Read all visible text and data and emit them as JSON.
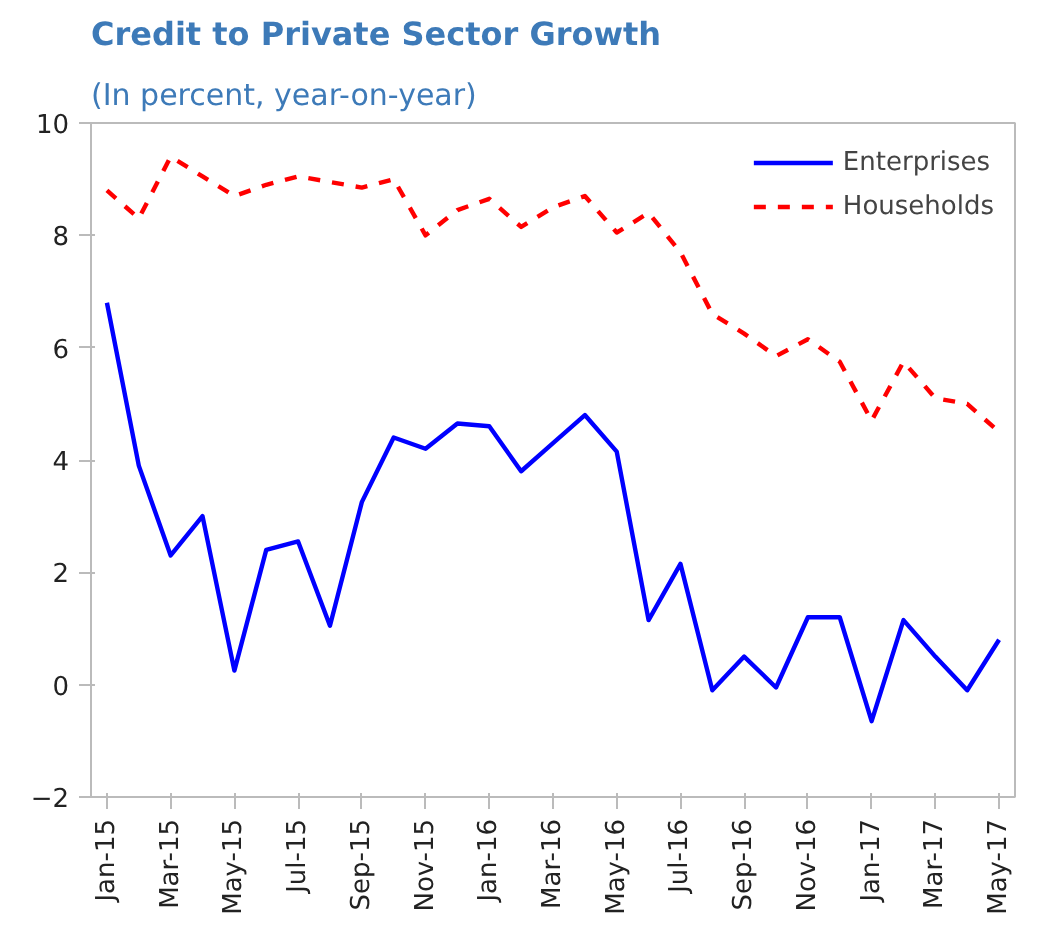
{
  "chart_data": {
    "type": "line",
    "title": "Credit to Private Sector Growth",
    "subtitle": "(In percent, year-on-year)",
    "categories": [
      "Jan-15",
      null,
      "Mar-15",
      null,
      "May-15",
      null,
      "Jul-15",
      null,
      "Sep-15",
      null,
      "Nov-15",
      null,
      "Jan-16",
      null,
      "Mar-16",
      null,
      "May-16",
      null,
      "Jul-16",
      null,
      "Sep-16",
      null,
      "Nov-16",
      null,
      "Jan-17",
      null,
      "Mar-17",
      null,
      "May-17"
    ],
    "series": [
      {
        "name": "Enterprises",
        "color": "#0000ff",
        "line_style": "solid",
        "values": [
          6.8,
          3.9,
          2.3,
          3.0,
          0.25,
          2.4,
          2.55,
          1.05,
          3.25,
          4.4,
          4.2,
          4.65,
          4.6,
          3.8,
          4.3,
          4.8,
          4.15,
          1.15,
          2.15,
          -0.1,
          0.5,
          -0.05,
          1.2,
          1.2,
          -0.65,
          1.15,
          0.5,
          -0.1,
          0.8
        ]
      },
      {
        "name": "Households",
        "color": "#ff0000",
        "line_style": "dashed",
        "values": [
          8.8,
          8.3,
          9.4,
          9.05,
          8.7,
          8.9,
          9.05,
          8.95,
          8.85,
          9.0,
          8.0,
          8.45,
          8.65,
          8.15,
          8.5,
          8.7,
          8.05,
          8.4,
          7.7,
          6.6,
          6.25,
          5.85,
          6.15,
          5.75,
          4.7,
          5.75,
          5.1,
          5.0,
          4.5
        ]
      }
    ],
    "ylim": [
      -2,
      10
    ],
    "yticks": [
      -2,
      0,
      2,
      4,
      6,
      8,
      10
    ],
    "grid": false,
    "legend": "top right"
  }
}
